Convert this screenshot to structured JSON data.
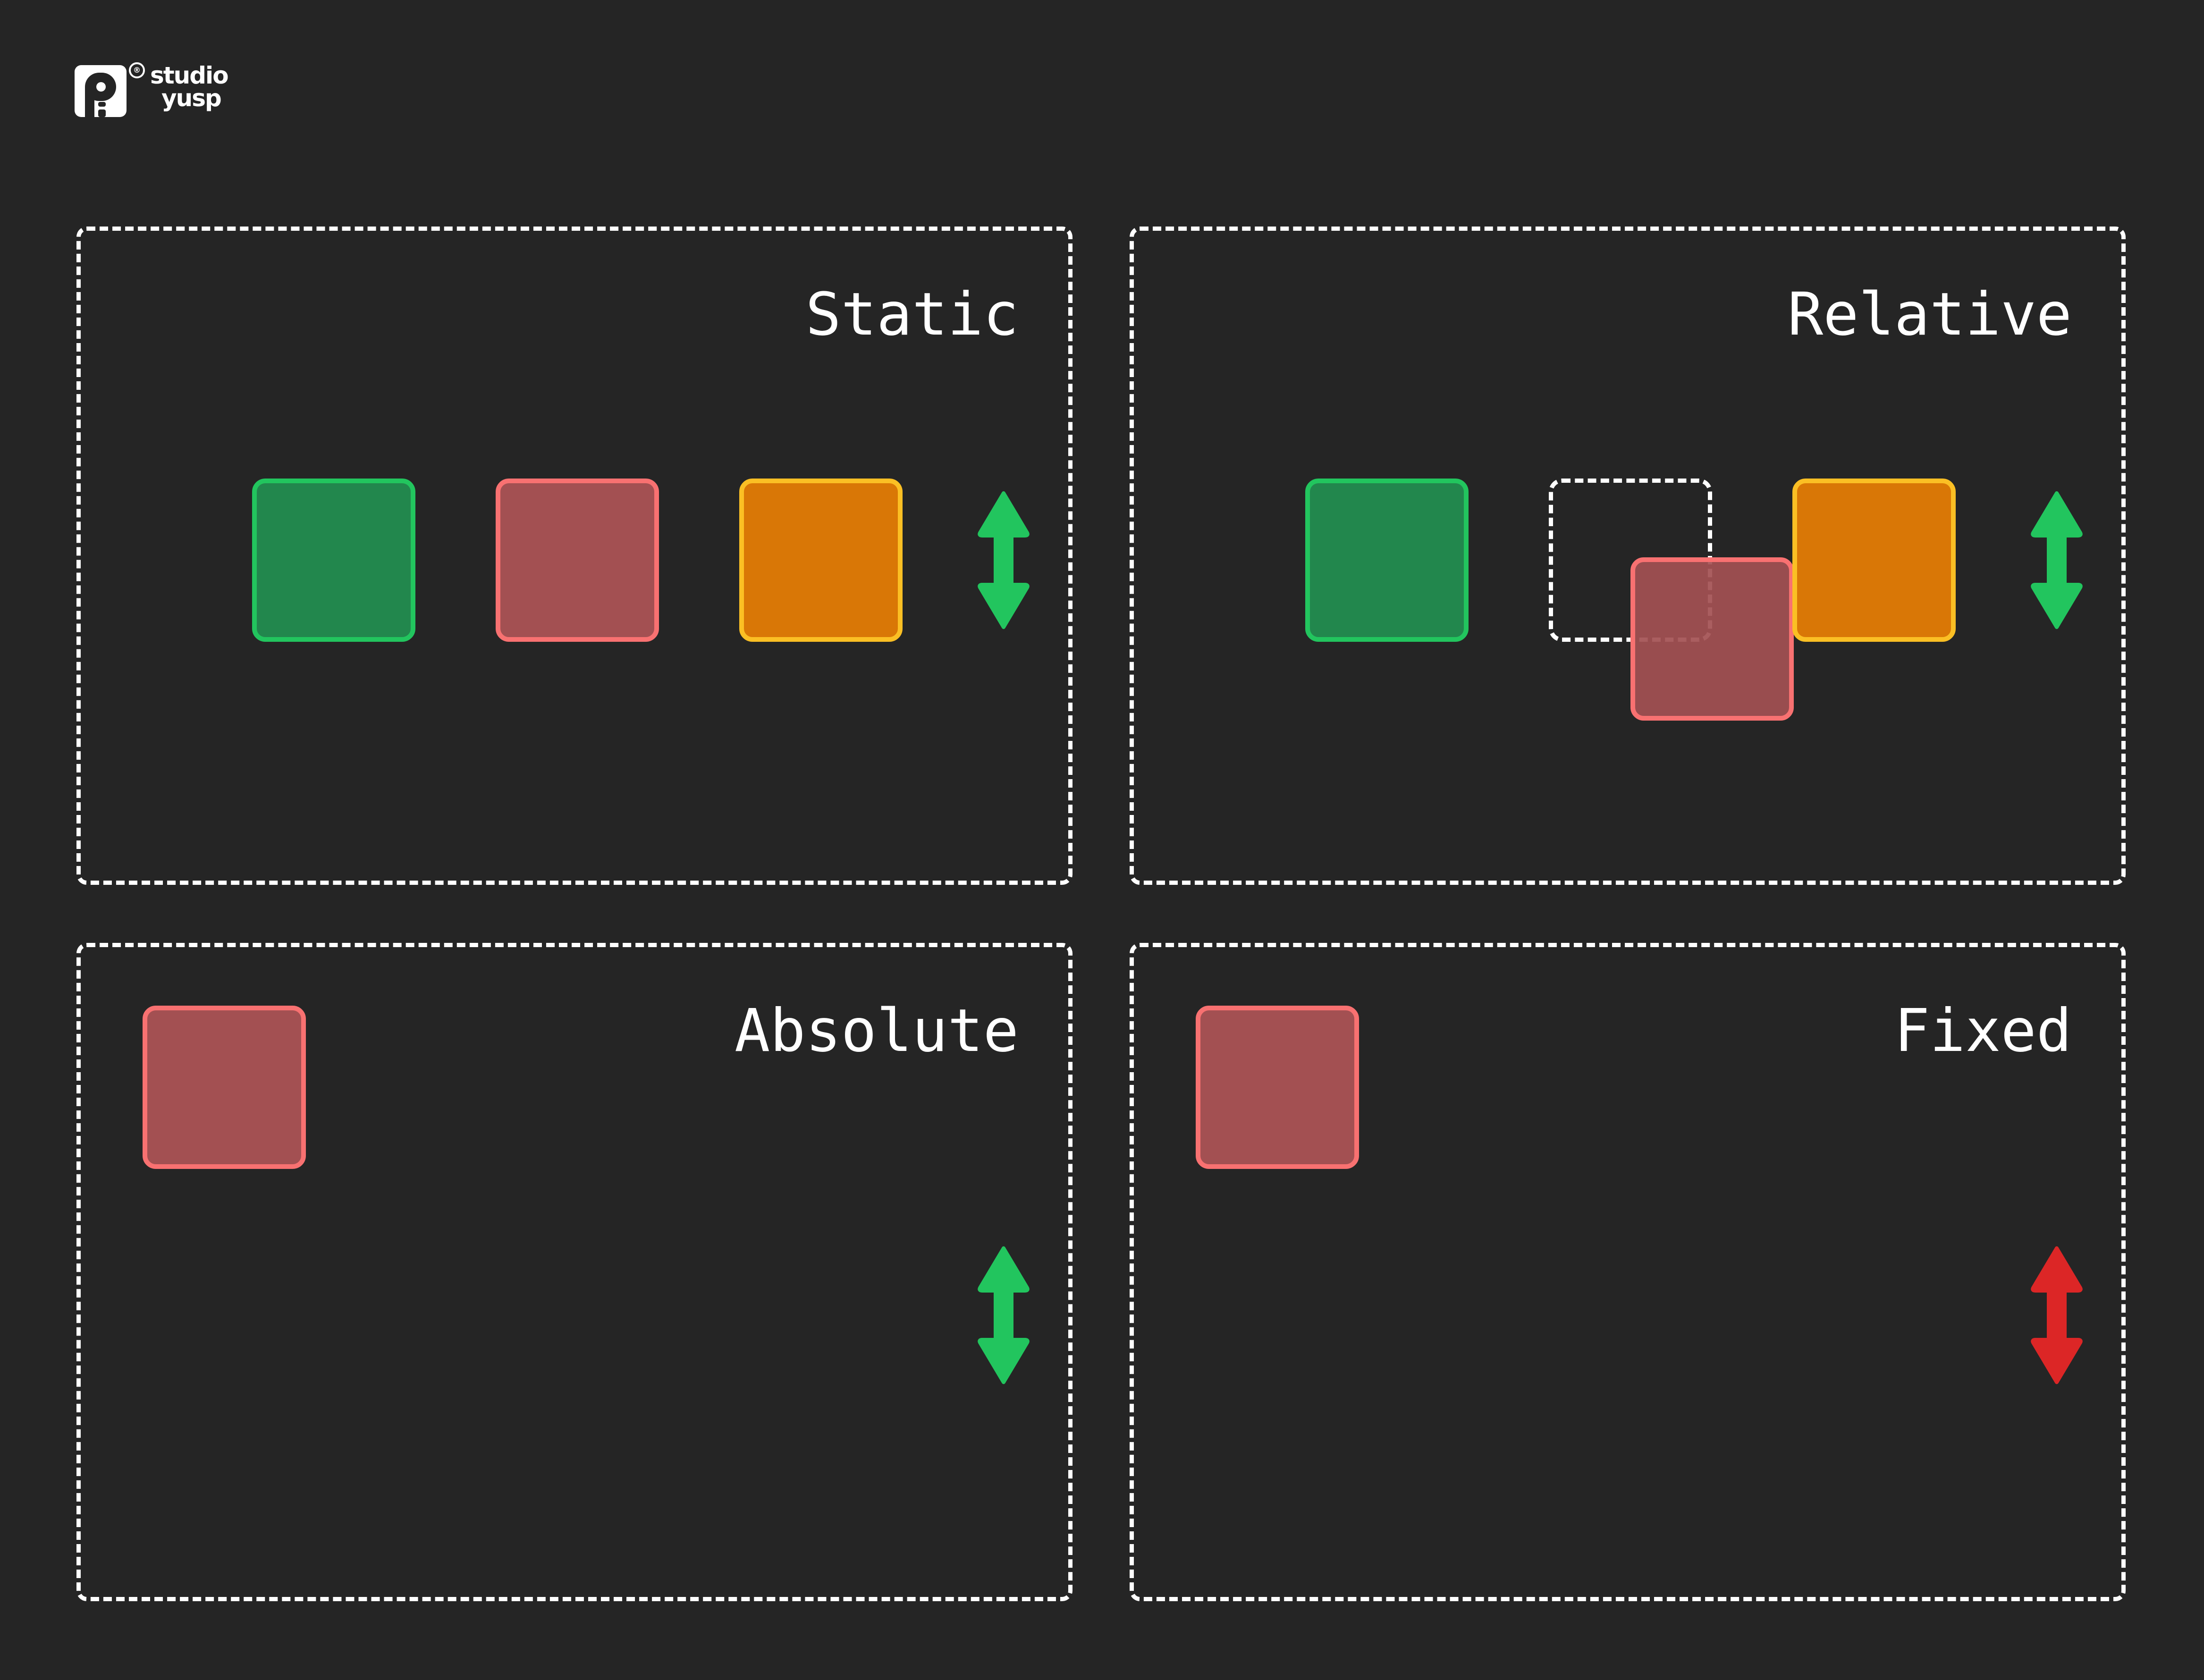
{
  "brand": {
    "name_line1": "studio",
    "name_line2": "yusp",
    "registered_mark": "®"
  },
  "colors": {
    "background": "#252525",
    "green": "#22c55e",
    "red": "#f87171",
    "orange": "#fbbf24",
    "arrow_green": "#22c55e",
    "arrow_red": "#dc2626"
  },
  "panels": {
    "static": {
      "label": "Static",
      "arrow": "scroll-arrow-icon (green)"
    },
    "relative": {
      "label": "Relative",
      "arrow": "scroll-arrow-icon (green)"
    },
    "absolute": {
      "label": "Absolute",
      "arrow": "scroll-arrow-icon (green)"
    },
    "fixed": {
      "label": "Fixed",
      "arrow": "scroll-arrow-icon (red)"
    }
  }
}
